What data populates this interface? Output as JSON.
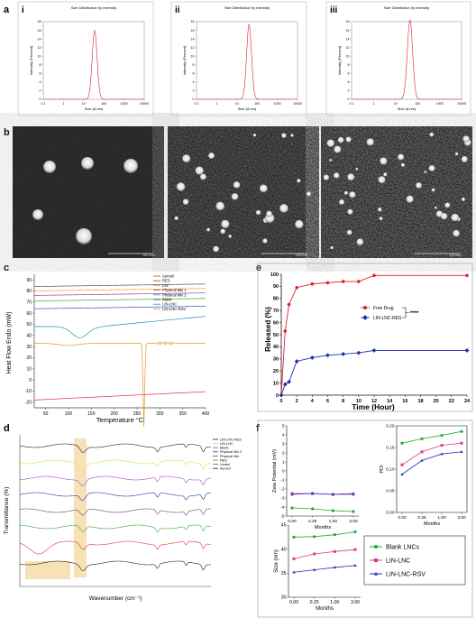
{
  "panel_labels": {
    "a": "a",
    "b": "b",
    "c": "c",
    "d": "d",
    "e": "e",
    "f": "f"
  },
  "sub_labels": {
    "i": "i",
    "ii": "ii",
    "iii": "iii"
  },
  "dls": {
    "title": "Size Distribution by Intensity",
    "ylabel": "Intensity (Percent)",
    "xlabel": "Size (d.nm)",
    "xticks": [
      "0.1",
      "1",
      "10",
      "100",
      "1000",
      "10000"
    ],
    "yticks": [
      "0",
      "2",
      "4",
      "6",
      "8",
      "10",
      "12",
      "14",
      "16",
      "18"
    ],
    "peaks": [
      {
        "center": 35,
        "height": 16
      },
      {
        "center": 40,
        "height": 17.5
      },
      {
        "center": 45,
        "height": 18.5
      }
    ]
  },
  "tem": {
    "scale_text": "100.0nm"
  },
  "dsc": {
    "ylabel": "Heat Flow Endo (mW)",
    "xlabel": "Temperature °C",
    "xticks": [
      "50",
      "100",
      "150",
      "200",
      "250",
      "300",
      "350",
      "400"
    ],
    "yticks": [
      "-20",
      "-10",
      "0",
      "10",
      "20",
      "30",
      "40",
      "50",
      "60",
      "70",
      "80",
      "90"
    ],
    "legend": [
      "Aerosil",
      "RES",
      "LIN",
      "Physical Mix 1",
      "Physical Mix 2",
      "Blank",
      "LIN-LNC",
      "LIN-LNC-RSV"
    ],
    "colors": [
      "#e0303a",
      "#555555",
      "#f0a030",
      "#a040a0",
      "#33aa33",
      "#3050d0",
      "#2a8fb8",
      "#d8a020"
    ]
  },
  "ftir": {
    "ylabel": "Transmittance (%)",
    "xlabel": "Wavenumber (cm⁻¹)",
    "legend": [
      "LIN-LNC-RES",
      "LIN-LNC",
      "Blank",
      "Physical Mix 2",
      "Physical Mix",
      "RES",
      "Linalol",
      "Aerosil"
    ],
    "colors": [
      "#222222",
      "#dddd44",
      "#aa44cc",
      "#333399",
      "#555555",
      "#33aa33",
      "#dd3344",
      "#222222"
    ]
  },
  "chart_data": [
    {
      "type": "line",
      "title": "",
      "xlabel": "Time (Hour)",
      "ylabel": "Released (%)",
      "xlim": [
        0,
        24
      ],
      "ylim": [
        0,
        100
      ],
      "xticks": [
        "0",
        "2",
        "4",
        "6",
        "8",
        "10",
        "12",
        "14",
        "16",
        "18",
        "20",
        "22",
        "24"
      ],
      "yticks": [
        "0",
        "10",
        "20",
        "30",
        "40",
        "50",
        "60",
        "70",
        "80",
        "90",
        "100"
      ],
      "significance": "****",
      "series": [
        {
          "name": "Free Drug",
          "color": "#e02030",
          "x": [
            0,
            0.5,
            1,
            2,
            4,
            6,
            8,
            10,
            12,
            24
          ],
          "y": [
            0,
            53,
            75,
            89,
            92,
            93,
            94,
            94,
            99,
            99
          ]
        },
        {
          "name": "LIN-LNC-RES",
          "color": "#1d2fa0",
          "x": [
            0,
            0.5,
            1,
            2,
            4,
            6,
            8,
            10,
            12,
            24
          ],
          "y": [
            0,
            9,
            11,
            28,
            31,
            33,
            34,
            35,
            37,
            37
          ]
        }
      ]
    },
    {
      "type": "line",
      "ylabel": "Zeta Potential (mV)",
      "xlabel": "Months",
      "categories": [
        "0.00",
        "0.25",
        "1.00",
        "3.00"
      ],
      "ylim": [
        -5,
        5
      ],
      "yticks": [
        "-5",
        "-4",
        "-3",
        "-2",
        "-1",
        "0",
        "1",
        "2",
        "3",
        "4",
        "5"
      ],
      "series": [
        {
          "color": "#22aa33",
          "values": [
            -4.1,
            -4.2,
            -4.4,
            -4.5
          ]
        },
        {
          "color": "#e03a8c",
          "values": [
            -2.5,
            -2.5,
            -2.6,
            -2.6
          ]
        },
        {
          "color": "#2233bb",
          "values": [
            -2.6,
            -2.5,
            -2.6,
            -2.5
          ]
        }
      ]
    },
    {
      "type": "line",
      "ylabel": "PDI",
      "xlabel": "Months",
      "categories": [
        "0.00",
        "0.25",
        "1.00",
        "3.00"
      ],
      "ylim": [
        0,
        0.2
      ],
      "yticks": [
        "0.00",
        "0.05",
        "0.10",
        "0.15",
        "0.20"
      ],
      "series": [
        {
          "color": "#22aa33",
          "values": [
            0.16,
            0.17,
            0.178,
            0.187
          ]
        },
        {
          "color": "#e03a8c",
          "values": [
            0.11,
            0.14,
            0.155,
            0.16
          ]
        },
        {
          "color": "#2233bb",
          "values": [
            0.088,
            0.12,
            0.135,
            0.14
          ]
        }
      ]
    },
    {
      "type": "line",
      "ylabel": "Size (nm)",
      "xlabel": "Months",
      "categories": [
        "0.00",
        "0.25",
        "1.00",
        "3.00"
      ],
      "ylim": [
        30,
        45
      ],
      "yticks": [
        "30",
        "35",
        "40",
        "45"
      ],
      "legend": [
        "Blank LNCs",
        "LIN-LNC",
        "LIN-LNC-RSV"
      ],
      "series": [
        {
          "name": "Blank LNCs",
          "color": "#22aa33",
          "values": [
            42.5,
            42.6,
            43.0,
            43.6
          ]
        },
        {
          "name": "LIN-LNC",
          "color": "#e03a8c",
          "values": [
            38.0,
            39.0,
            39.5,
            39.9
          ]
        },
        {
          "name": "LIN-LNC-RSV",
          "color": "#2233bb",
          "values": [
            35.2,
            35.7,
            36.2,
            36.6
          ]
        }
      ]
    }
  ]
}
